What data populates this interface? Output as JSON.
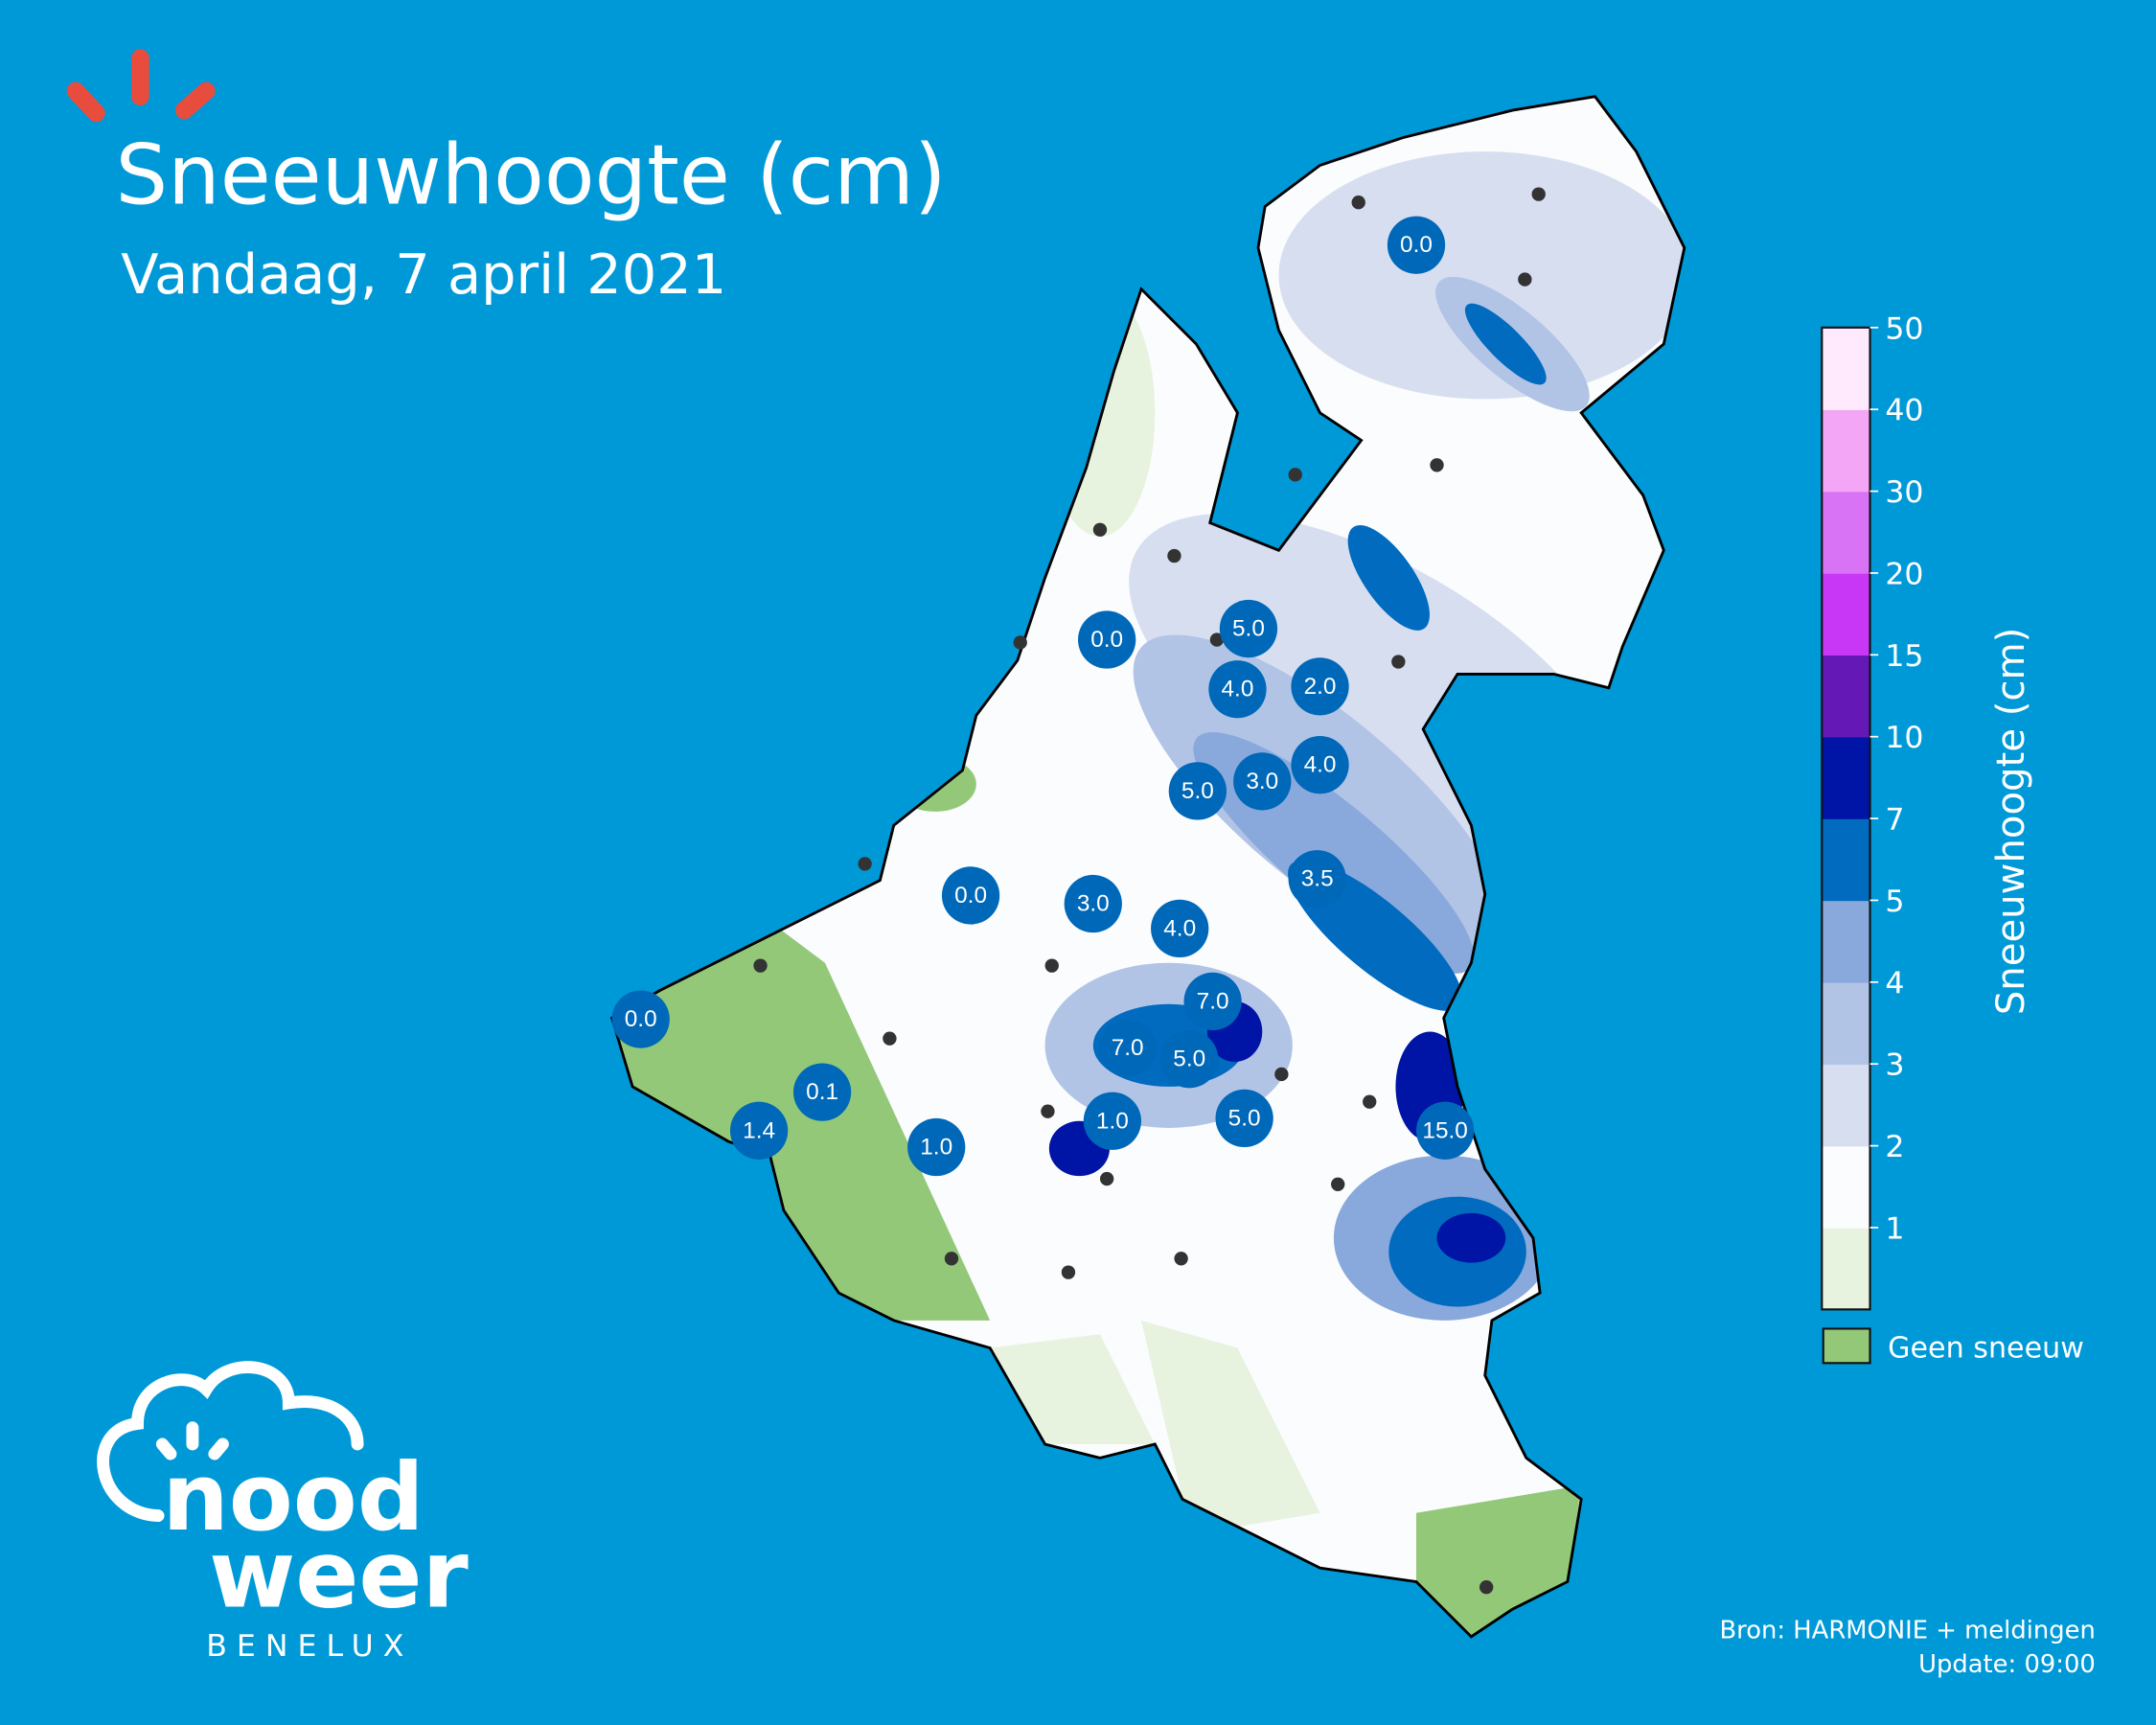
{
  "header": {
    "title": "Sneeuwhoogte (cm)",
    "subtitle": "Vandaag, 7 april 2021"
  },
  "colors": {
    "background": "#0099d8",
    "sun_rays": "#e84c3d",
    "label_bubble": "#0068b8",
    "no_snow": "#93c878"
  },
  "map": {
    "observations": [
      {
        "value": "0.0"
      },
      {
        "value": "0.0"
      },
      {
        "value": "5.0"
      },
      {
        "value": "4.0"
      },
      {
        "value": "2.0"
      },
      {
        "value": "4.0"
      },
      {
        "value": "3.0"
      },
      {
        "value": "5.0"
      },
      {
        "value": "3.5"
      },
      {
        "value": "0.0"
      },
      {
        "value": "3.0"
      },
      {
        "value": "4.0"
      },
      {
        "value": "7.0"
      },
      {
        "value": "7.0"
      },
      {
        "value": "5.0"
      },
      {
        "value": "5.0"
      },
      {
        "value": "1.0"
      },
      {
        "value": "15.0"
      },
      {
        "value": "0.0"
      },
      {
        "value": "0.1"
      },
      {
        "value": "1.4"
      },
      {
        "value": "1.0"
      }
    ]
  },
  "legend": {
    "axis_label": "Sneeuwhoogte (cm)",
    "ticks": [
      "1",
      "2",
      "3",
      "4",
      "5",
      "7",
      "10",
      "15",
      "20",
      "30",
      "40",
      "50"
    ],
    "bins": [
      {
        "color": "#e8f3df"
      },
      {
        "color": "#fbfcfe"
      },
      {
        "color": "#d7def0"
      },
      {
        "color": "#b1c4e6"
      },
      {
        "color": "#89a8dc"
      },
      {
        "color": "#006bbf"
      },
      {
        "color": "#0014a6"
      },
      {
        "color": "#6419b6"
      },
      {
        "color": "#c837f5"
      },
      {
        "color": "#d973f6"
      },
      {
        "color": "#f4a6f6"
      },
      {
        "color": "#ffe9fd"
      }
    ],
    "no_snow_label": "Geen sneeuw"
  },
  "footer": {
    "source": "Bron: HARMONIE + meldingen",
    "update": "Update: 09:00"
  },
  "logo": {
    "line1": "nood",
    "line2": "weer",
    "line3": "BENELUX"
  }
}
